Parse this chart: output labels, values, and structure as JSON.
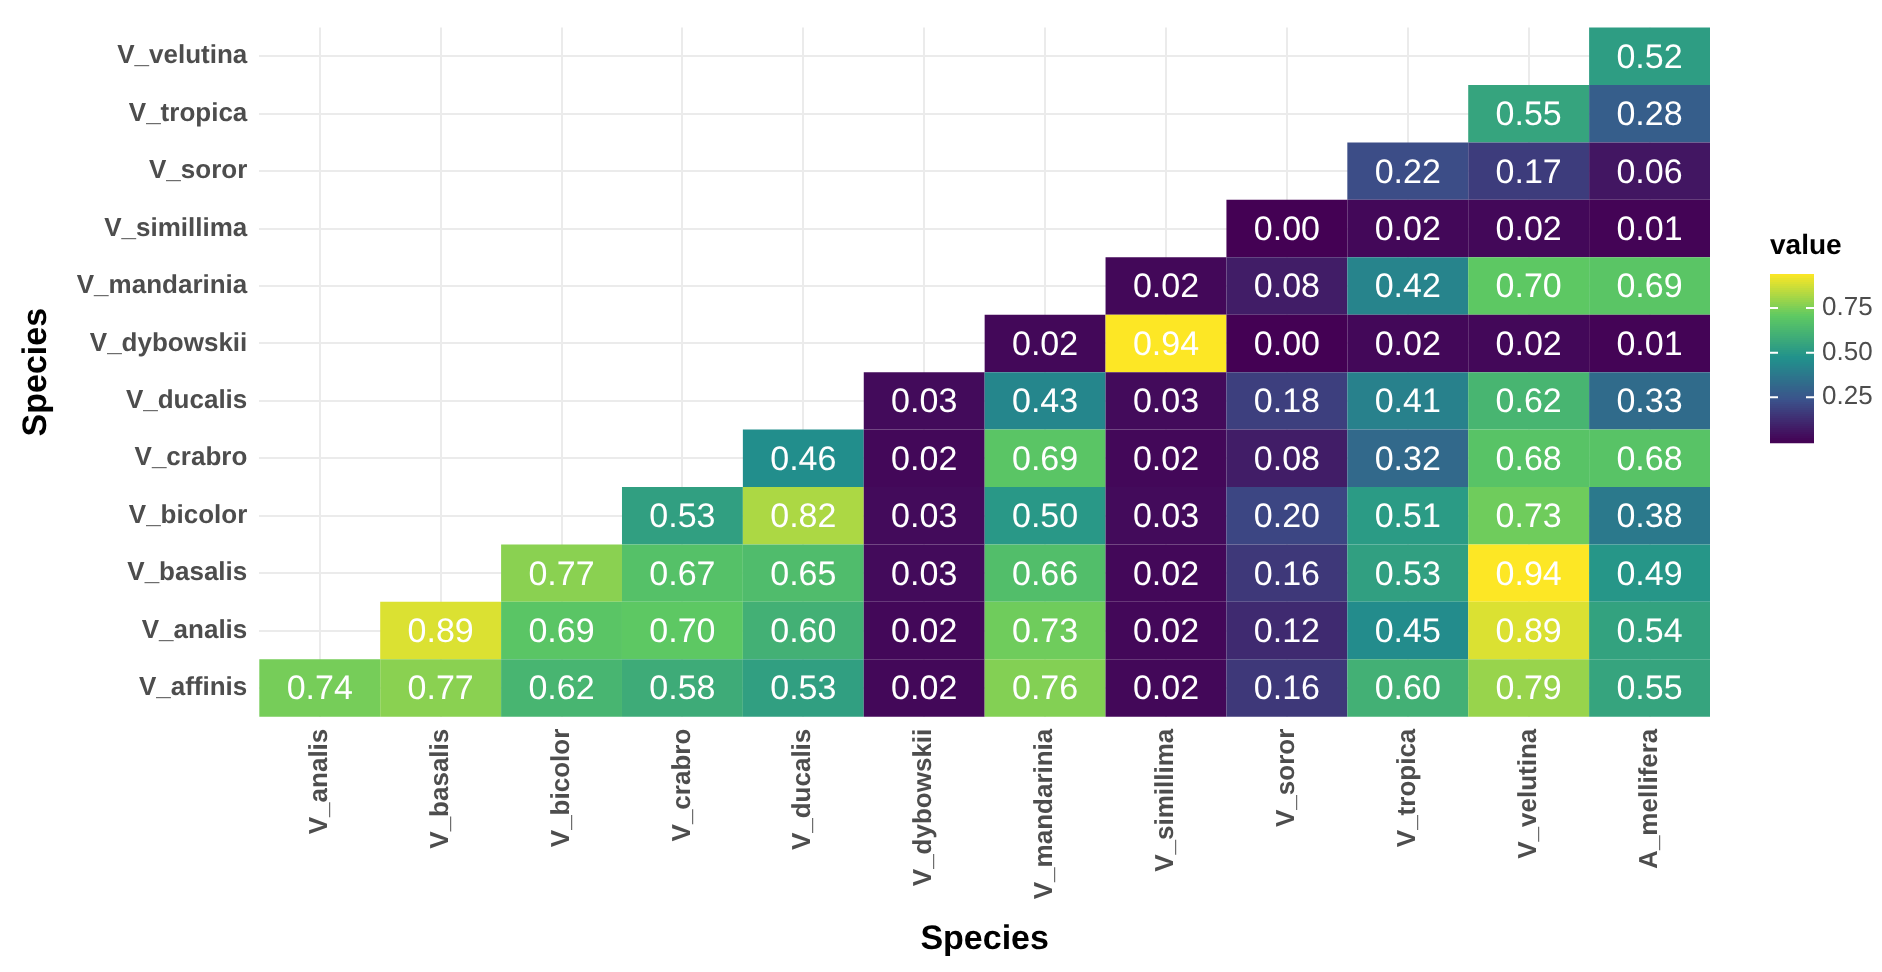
{
  "chart_data": {
    "type": "heatmap",
    "xlabel": "Species",
    "ylabel": "Species",
    "clabel": "value",
    "categories": [
      "V_analis",
      "V_basalis",
      "V_bicolor",
      "V_crabro",
      "V_ducalis",
      "V_dybowskii",
      "V_mandarinia",
      "V_simillima",
      "V_soror",
      "V_tropica",
      "V_velutina",
      "A_mellifera"
    ],
    "y_categories": [
      "V_velutina",
      "V_tropica",
      "V_soror",
      "V_simillima",
      "V_mandarinia",
      "V_dybowskii",
      "V_ducalis",
      "V_crabro",
      "V_bicolor",
      "V_basalis",
      "V_analis",
      "V_affinis"
    ],
    "cells": [
      [
        null,
        null,
        null,
        null,
        null,
        null,
        null,
        null,
        null,
        null,
        null,
        0.52
      ],
      [
        null,
        null,
        null,
        null,
        null,
        null,
        null,
        null,
        null,
        null,
        0.55,
        0.28
      ],
      [
        null,
        null,
        null,
        null,
        null,
        null,
        null,
        null,
        null,
        0.22,
        0.17,
        0.06
      ],
      [
        null,
        null,
        null,
        null,
        null,
        null,
        null,
        null,
        0.0,
        0.02,
        0.02,
        0.01
      ],
      [
        null,
        null,
        null,
        null,
        null,
        null,
        null,
        0.02,
        0.08,
        0.42,
        0.7,
        0.69
      ],
      [
        null,
        null,
        null,
        null,
        null,
        null,
        0.02,
        0.94,
        0.0,
        0.02,
        0.02,
        0.01
      ],
      [
        null,
        null,
        null,
        null,
        null,
        0.03,
        0.43,
        0.03,
        0.18,
        0.41,
        0.62,
        0.33
      ],
      [
        null,
        null,
        null,
        null,
        0.46,
        0.02,
        0.69,
        0.02,
        0.08,
        0.32,
        0.68,
        0.68
      ],
      [
        null,
        null,
        null,
        0.53,
        0.82,
        0.03,
        0.5,
        0.03,
        0.2,
        0.51,
        0.73,
        0.38
      ],
      [
        null,
        null,
        0.77,
        0.67,
        0.65,
        0.03,
        0.66,
        0.02,
        0.16,
        0.53,
        0.94,
        0.49
      ],
      [
        null,
        0.89,
        0.69,
        0.7,
        0.6,
        0.02,
        0.73,
        0.02,
        0.12,
        0.45,
        0.89,
        0.54
      ],
      [
        0.74,
        0.77,
        0.62,
        0.58,
        0.53,
        0.02,
        0.76,
        0.02,
        0.16,
        0.6,
        0.79,
        0.55
      ]
    ],
    "cell_labels": [
      [
        null,
        null,
        null,
        null,
        null,
        null,
        null,
        null,
        null,
        null,
        null,
        "0.52"
      ],
      [
        null,
        null,
        null,
        null,
        null,
        null,
        null,
        null,
        null,
        null,
        "0.55",
        "0.28"
      ],
      [
        null,
        null,
        null,
        null,
        null,
        null,
        null,
        null,
        null,
        "0.22",
        "0.17",
        "0.06"
      ],
      [
        null,
        null,
        null,
        null,
        null,
        null,
        null,
        null,
        "0.00",
        "0.02",
        "0.02",
        "0.01"
      ],
      [
        null,
        null,
        null,
        null,
        null,
        null,
        null,
        "0.02",
        "0.08",
        "0.42",
        "0.70",
        "0.69"
      ],
      [
        null,
        null,
        null,
        null,
        null,
        null,
        "0.02",
        "0.94",
        "0.00",
        "0.02",
        "0.02",
        "0.01"
      ],
      [
        null,
        null,
        null,
        null,
        null,
        "0.03",
        "0.43",
        "0.03",
        "0.18",
        "0.41",
        "0.62",
        "0.33"
      ],
      [
        null,
        null,
        null,
        null,
        "0.46",
        "0.02",
        "0.69",
        "0.02",
        "0.08",
        "0.32",
        "0.68",
        "0.68"
      ],
      [
        null,
        null,
        null,
        "0.53",
        "0.82",
        "0.03",
        "0.50",
        "0.03",
        "0.20",
        "0.51",
        "0.73",
        "0.38"
      ],
      [
        null,
        null,
        "0.77",
        "0.67",
        "0.65",
        "0.03",
        "0.66",
        "0.02",
        "0.16",
        "0.53",
        "0.94",
        "0.49"
      ],
      [
        null,
        "0.89",
        "0.69",
        "0.70",
        "0.60",
        "0.02",
        "0.73",
        "0.02",
        "0.12",
        "0.45",
        "0.89",
        "0.54"
      ],
      [
        "0.74",
        "0.77",
        "0.62",
        "0.58",
        "0.53",
        "0.02",
        "0.76",
        "0.02",
        "0.16",
        "0.60",
        "0.79",
        "0.55"
      ]
    ],
    "grid": true,
    "clim": [
      0,
      0.94
    ],
    "cticks": [
      0.25,
      {
        "value": 0.5,
        "label": "0.50"
      },
      0.75
    ]
  }
}
